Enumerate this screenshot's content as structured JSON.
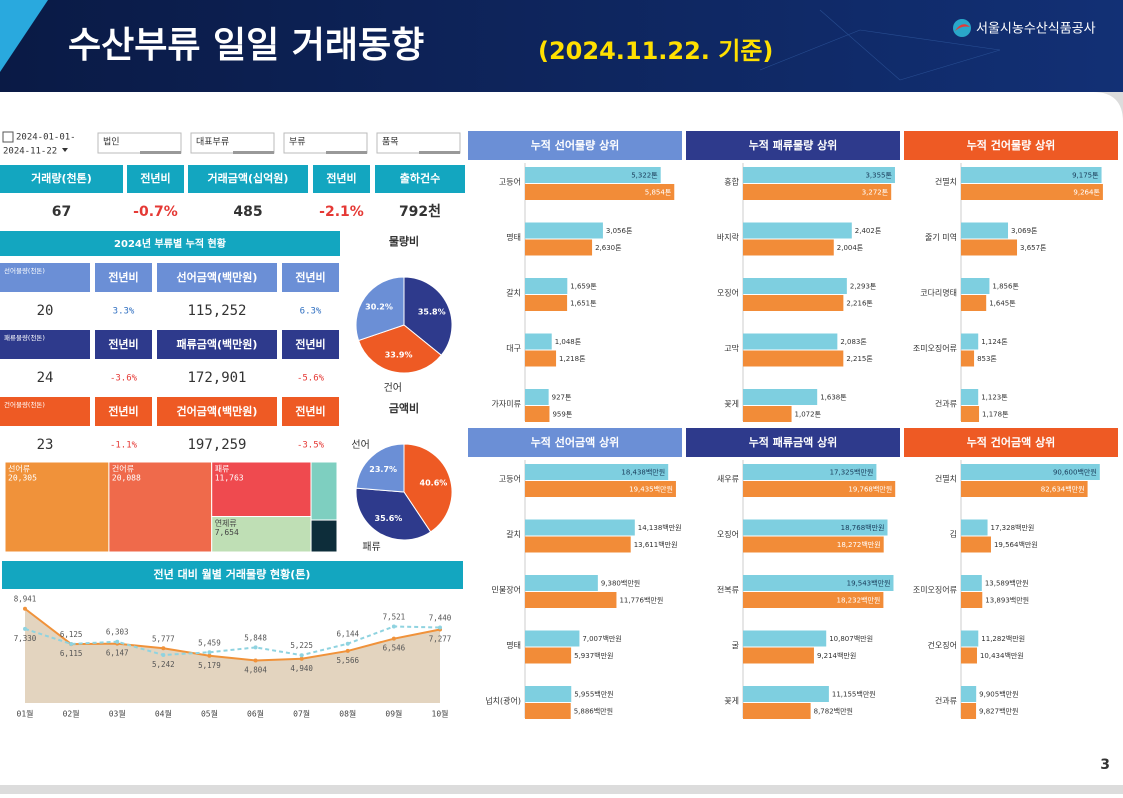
{
  "header": {
    "title": "수산부류 일일 거래동향",
    "date": "(2024.11.22. 기준)",
    "org": "서울시농수산식품공사",
    "page": "3"
  },
  "filters": {
    "date_from": "2024-01-01-",
    "date_to": "2024-11-22",
    "dropdowns": [
      "법인",
      "대표부류",
      "부류",
      "품목"
    ]
  },
  "kpi": {
    "headers": [
      "거래량(천톤)",
      "전년비",
      "거래금액(십억원)",
      "전년비",
      "출하건수"
    ],
    "values": [
      "67",
      "-0.7%",
      "485",
      "-2.1%",
      "792천"
    ]
  },
  "cumulative": {
    "title": "2024년 부류별 누적 현황",
    "rows": [
      {
        "color": "#6b8fd6",
        "headers": [
          "선어물량(천톤)",
          "전년비",
          "선어금액(백만원)",
          "전년비"
        ],
        "values": [
          "20",
          "3.3%",
          "115,252",
          "6.3%"
        ]
      },
      {
        "color": "#2e3a8c",
        "headers": [
          "패류물량(천톤)",
          "전년비",
          "패류금액(백만원)",
          "전년비"
        ],
        "values": [
          "24",
          "-3.6%",
          "172,901",
          "-5.6%"
        ]
      },
      {
        "color": "#ee5a24",
        "headers": [
          "건어물량(천톤)",
          "전년비",
          "건어금액(백만원)",
          "전년비"
        ],
        "values": [
          "23",
          "-1.1%",
          "197,259",
          "-3.5%"
        ]
      }
    ]
  },
  "chart_data": [
    {
      "type": "pie",
      "title": "물량비",
      "categories": [
        null,
        "건어",
        null
      ],
      "values": [
        35.8,
        33.9,
        30.2
      ],
      "value_labels": [
        "35.8%",
        "33.9%",
        "30.2%"
      ],
      "colors": [
        "#2e3a8c",
        "#ee5a24",
        "#6b8fd6"
      ]
    },
    {
      "type": "pie",
      "title": "금액비",
      "categories": [
        null,
        "패류",
        "선어"
      ],
      "values": [
        40.6,
        35.6,
        23.7
      ],
      "value_labels": [
        "40.6%",
        "35.6%",
        "23.7%"
      ],
      "colors": [
        "#ee5a24",
        "#2e3a8c",
        "#6b8fd6"
      ]
    },
    {
      "type": "treemap",
      "categories": [
        "선어류",
        "건어류",
        "패류",
        "연제류",
        null,
        null
      ],
      "values": [
        20305,
        20088,
        11763,
        7654,
        3270,
        1800
      ],
      "value_labels": [
        "20,305",
        "20,088",
        "11,763",
        "7,654",
        null,
        null
      ],
      "colors": [
        "#f0923a",
        "#ef6a4b",
        "#ef4a4f",
        "#bfdfb5",
        "#7ecfc0",
        "#0d2d3a"
      ]
    },
    {
      "type": "line",
      "title": "전년 대비 월별 거래물량 현황(톤)",
      "categories": [
        "01월",
        "02월",
        "03월",
        "04월",
        "05월",
        "06월",
        "07월",
        "08월",
        "09월",
        "10월"
      ],
      "ylim": [
        1400,
        9800
      ],
      "series": [
        {
          "color": "#f0923a",
          "area": "#e3d4bf",
          "values": [
            8941,
            6115,
            6147,
            5777,
            5179,
            4804,
            4940,
            5566,
            6546,
            7277
          ],
          "value_labels": [
            "8,941",
            "6,115",
            "6,147",
            "5,777",
            "5,179",
            "4,804",
            "4,940",
            "5,566",
            "6,546",
            "7,277"
          ]
        },
        {
          "color": "#8fd3e0",
          "dashed": true,
          "values": [
            7330,
            6125,
            6303,
            5242,
            5459,
            5848,
            5225,
            6144,
            7521,
            7440
          ],
          "value_labels": [
            "7,330",
            "6,125",
            "6,303",
            "5,242",
            "5,459",
            "5,848",
            "5,225",
            "6,144",
            "7,521",
            "7,440"
          ]
        }
      ]
    },
    {
      "type": "hbar",
      "title": "누적 선어물량 상위",
      "title_color": "#6b8fd6",
      "categories": [
        "고등어",
        "명태",
        "갈치",
        "대구",
        "가자미류"
      ],
      "xlim": [
        0,
        6000
      ],
      "series": [
        {
          "color": "#7ecfe0",
          "values": [
            5322,
            3056,
            1659,
            1048,
            927
          ],
          "value_labels": [
            "5,322톤",
            "3,056톤",
            "1,659톤",
            "1,048톤",
            "927톤"
          ]
        },
        {
          "color": "#f28c38",
          "values": [
            5854,
            2630,
            1651,
            1218,
            959
          ],
          "value_labels": [
            "5,854톤",
            "2,630톤",
            "1,651톤",
            "1,218톤",
            "959톤"
          ]
        }
      ]
    },
    {
      "type": "hbar",
      "title": "누적 패류물량 상위",
      "title_color": "#2e3a8c",
      "categories": [
        "홍합",
        "바지락",
        "오징어",
        "고막",
        "꽃게"
      ],
      "xlim": [
        0,
        3400
      ],
      "series": [
        {
          "color": "#7ecfe0",
          "values": [
            3355,
            2402,
            2293,
            2083,
            1638
          ],
          "value_labels": [
            "3,355톤",
            "2,402톤",
            "2,293톤",
            "2,083톤",
            "1,638톤"
          ]
        },
        {
          "color": "#f28c38",
          "values": [
            3272,
            2004,
            2216,
            2215,
            1072
          ],
          "value_labels": [
            "3,272톤",
            "2,004톤",
            "2,216톤",
            "2,215톤",
            "1,072톤"
          ]
        }
      ]
    },
    {
      "type": "hbar",
      "title": "누적 건어물량 상위",
      "title_color": "#ee5a24",
      "categories": [
        "건멸치",
        "줄기 미역",
        "코다리명태",
        "조미오징어류",
        "건과류"
      ],
      "xlim": [
        0,
        9400
      ],
      "series": [
        {
          "color": "#7ecfe0",
          "values": [
            9175,
            3069,
            1856,
            1124,
            1123
          ],
          "value_labels": [
            "9,175톤",
            "3,069톤",
            "1,856톤",
            "1,124톤",
            "1,123톤"
          ]
        },
        {
          "color": "#f28c38",
          "values": [
            9264,
            3657,
            1645,
            853,
            1178
          ],
          "value_labels": [
            "9,264톤",
            "3,657톤",
            "1,645톤",
            "853톤",
            "1,178톤"
          ]
        }
      ]
    },
    {
      "type": "hbar",
      "title": "누적 선어금액 상위",
      "title_color": "#6b8fd6",
      "categories": [
        "고등어",
        "갈치",
        "민물장어",
        "명태",
        "넙치(광어)"
      ],
      "xlim": [
        0,
        19700
      ],
      "series": [
        {
          "color": "#7ecfe0",
          "values": [
            18438,
            14138,
            9380,
            7007,
            5955
          ],
          "value_labels": [
            "18,438백만원",
            "14,138백만원",
            "9,380백만원",
            "7,007백만원",
            "5,955백만원"
          ]
        },
        {
          "color": "#f28c38",
          "values": [
            19435,
            13611,
            11776,
            5937,
            5886
          ],
          "value_labels": [
            "19,435백만원",
            "13,611백만원",
            "11,776백만원",
            "5,937백만원",
            "5,886백만원"
          ]
        }
      ]
    },
    {
      "type": "hbar",
      "title": "누적 패류금액 상위",
      "title_color": "#2e3a8c",
      "categories": [
        "새우류",
        "오징어",
        "전복류",
        "굴",
        "꽃게"
      ],
      "xlim": [
        0,
        20000
      ],
      "series": [
        {
          "color": "#7ecfe0",
          "values": [
            17325,
            18768,
            19543,
            10807,
            11155
          ],
          "value_labels": [
            "17,325백만원",
            "18,768백만원",
            "19,543백만원",
            "10,807백만원",
            "11,155백만원"
          ]
        },
        {
          "color": "#f28c38",
          "values": [
            19768,
            18272,
            18232,
            9214,
            8782
          ],
          "value_labels": [
            "19,768백만원",
            "18,272백만원",
            "18,232백만원",
            "9,214백만원",
            "8,782백만원"
          ]
        }
      ]
    },
    {
      "type": "hbar",
      "title": "누적 건어금액 상위",
      "title_color": "#ee5a24",
      "categories": [
        "건멸치",
        "김",
        "조미오징어류",
        "건오징어",
        "건과류"
      ],
      "xlim": [
        0,
        94000
      ],
      "series": [
        {
          "color": "#7ecfe0",
          "values": [
            90600,
            17328,
            13589,
            11282,
            9905
          ],
          "value_labels": [
            "90,600백만원",
            "17,328백만원",
            "13,589백만원",
            "11,282백만원",
            "9,905백만원"
          ]
        },
        {
          "color": "#f28c38",
          "values": [
            82634,
            19564,
            13893,
            10434,
            9827
          ],
          "value_labels": [
            "82,634백만원",
            "19,564백만원",
            "13,893백만원",
            "10,434백만원",
            "9,827백만원"
          ]
        }
      ]
    }
  ]
}
